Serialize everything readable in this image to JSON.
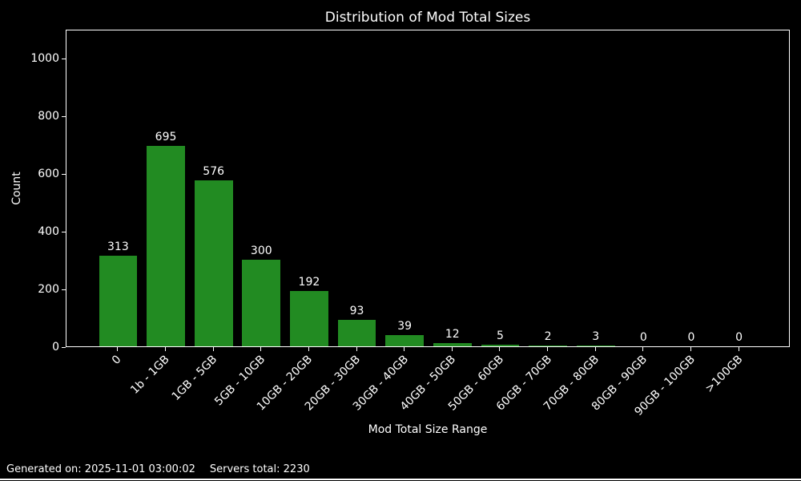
{
  "title": "Distribution of Mod Total Sizes",
  "footer": {
    "generated": "Generated on: 2025-11-01 03:00:02",
    "servers_total": "Servers total: 2230"
  },
  "chart_data": {
    "type": "bar",
    "title": "Distribution of Mod Total Sizes",
    "categories": [
      "0",
      "1b - 1GB",
      "1GB - 5GB",
      "5GB - 10GB",
      "10GB - 20GB",
      "20GB - 30GB",
      "30GB - 40GB",
      "40GB - 50GB",
      "50GB - 60GB",
      "60GB - 70GB",
      "70GB - 80GB",
      "80GB - 90GB",
      "90GB - 100GB",
      ">100GB"
    ],
    "values": [
      313,
      695,
      576,
      300,
      192,
      93,
      39,
      12,
      5,
      2,
      3,
      0,
      0,
      0
    ],
    "xlabel": "Mod Total Size Range",
    "ylabel": "Count",
    "ylim": [
      0,
      1100
    ],
    "yticks": [
      0,
      200,
      400,
      600,
      800,
      1000
    ],
    "xtick_rotation": 45,
    "value_labels": true,
    "grid": false,
    "legend": "none",
    "bar_color": "#228B22",
    "background_color": "#000000",
    "text_color": "#ffffff",
    "spine_color": "#ffffff"
  }
}
